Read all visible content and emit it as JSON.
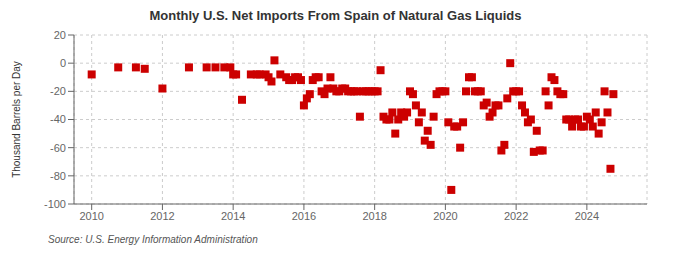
{
  "chart_data": {
    "type": "scatter",
    "title": "Monthly U.S. Net Imports From Spain of Natural Gas Liquids",
    "ylabel": "Thousand Barrels per Day",
    "source": "Source: U.S. Energy Information Administration",
    "color": "#cc0000",
    "marker": "square",
    "grid": true,
    "ylim": [
      -100,
      20
    ],
    "yticks": [
      -100,
      -80,
      -60,
      -40,
      -20,
      0,
      20
    ],
    "xlim": [
      2009.5,
      2025.7
    ],
    "xticks": [
      2010,
      2012,
      2014,
      2016,
      2018,
      2020,
      2022,
      2024
    ],
    "x": [
      2010.0,
      2010.75,
      2011.25,
      2011.5,
      2012.0,
      2012.75,
      2013.25,
      2013.5,
      2013.75,
      2013.92,
      2014.0,
      2014.083,
      2014.25,
      2014.5,
      2014.667,
      2014.75,
      2014.917,
      2015.0,
      2015.083,
      2015.167,
      2015.333,
      2015.5,
      2015.583,
      2015.667,
      2015.75,
      2015.833,
      2015.917,
      2016.0,
      2016.083,
      2016.167,
      2016.25,
      2016.333,
      2016.417,
      2016.5,
      2016.583,
      2016.667,
      2016.75,
      2016.833,
      2016.917,
      2017.0,
      2017.083,
      2017.167,
      2017.25,
      2017.333,
      2017.417,
      2017.5,
      2017.583,
      2017.667,
      2017.75,
      2017.833,
      2017.917,
      2018.0,
      2018.083,
      2018.167,
      2018.25,
      2018.333,
      2018.417,
      2018.5,
      2018.583,
      2018.667,
      2018.75,
      2018.833,
      2018.917,
      2019.0,
      2019.083,
      2019.167,
      2019.25,
      2019.333,
      2019.417,
      2019.5,
      2019.583,
      2019.667,
      2019.75,
      2019.833,
      2019.917,
      2020.0,
      2020.083,
      2020.167,
      2020.25,
      2020.333,
      2020.417,
      2020.5,
      2020.583,
      2020.667,
      2020.75,
      2020.833,
      2020.917,
      2021.0,
      2021.083,
      2021.167,
      2021.25,
      2021.333,
      2021.417,
      2021.5,
      2021.583,
      2021.667,
      2021.75,
      2021.833,
      2021.917,
      2022.0,
      2022.083,
      2022.167,
      2022.25,
      2022.333,
      2022.417,
      2022.5,
      2022.583,
      2022.667,
      2022.75,
      2022.833,
      2022.917,
      2023.0,
      2023.083,
      2023.167,
      2023.25,
      2023.333,
      2023.417,
      2023.5,
      2023.583,
      2023.667,
      2023.75,
      2023.833,
      2023.917,
      2024.0,
      2024.083,
      2024.167,
      2024.25,
      2024.333,
      2024.417,
      2024.5,
      2024.583,
      2024.667,
      2024.75
    ],
    "values": [
      -8,
      -3,
      -3,
      -4,
      -18,
      -3,
      -3,
      -3,
      -3,
      -3,
      -8,
      -8,
      -26,
      -8,
      -8,
      -8,
      -8,
      -10,
      -13,
      2,
      -8,
      -10,
      -12,
      -12,
      -10,
      -10,
      -12,
      -30,
      -25,
      -22,
      -12,
      -10,
      -10,
      -20,
      -22,
      -18,
      -10,
      -18,
      -20,
      -20,
      -18,
      -18,
      -20,
      -20,
      -20,
      -20,
      -38,
      -20,
      -20,
      -20,
      -20,
      -20,
      -20,
      -5,
      -38,
      -40,
      -40,
      -35,
      -50,
      -40,
      -35,
      -38,
      -35,
      -20,
      -22,
      -30,
      -42,
      -35,
      -55,
      -48,
      -58,
      -38,
      -22,
      -20,
      -20,
      -20,
      -42,
      -90,
      -45,
      -45,
      -60,
      -42,
      -20,
      -10,
      -10,
      -20,
      -20,
      -20,
      -30,
      -28,
      -38,
      -35,
      -30,
      -30,
      -62,
      -58,
      -25,
      0,
      -20,
      -20,
      -20,
      -30,
      -35,
      -42,
      -40,
      -63,
      -48,
      -62,
      -62,
      -20,
      -30,
      -10,
      -12,
      -20,
      -22,
      -22,
      -40,
      -40,
      -45,
      -40,
      -40,
      -45,
      -45,
      -38,
      -40,
      -45,
      -35,
      -50,
      -42,
      -20,
      -35,
      -75,
      -22
    ]
  }
}
